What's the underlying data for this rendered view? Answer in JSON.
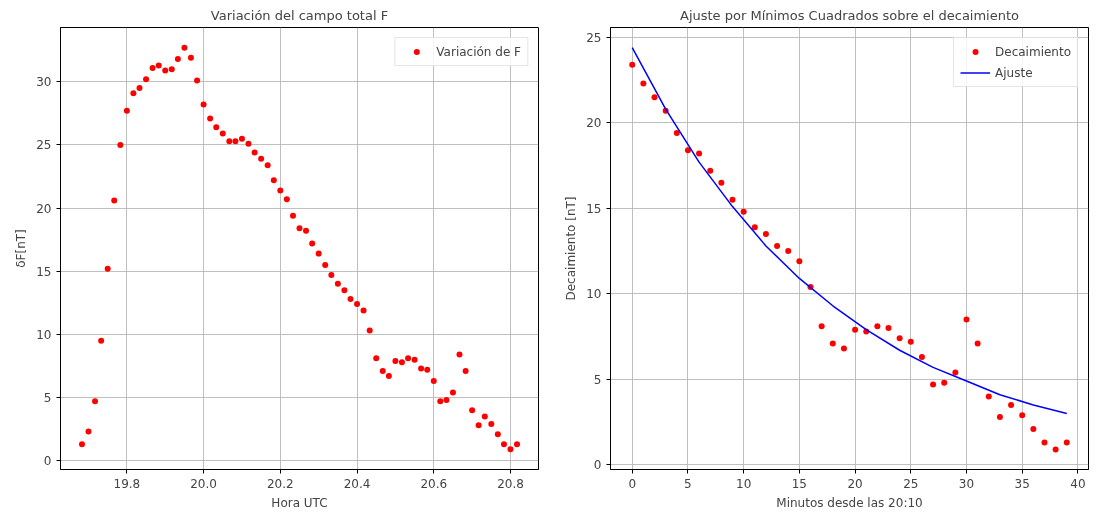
{
  "chart_data": [
    {
      "type": "scatter",
      "title": "Variación del campo total F",
      "xlabel": "Hora UTC",
      "ylabel": "δF[nT]",
      "xlim": [
        19.627,
        20.873
      ],
      "ylim": [
        -0.7,
        34.3
      ],
      "xticks": [
        {
          "value": 19.8,
          "label": "19.8"
        },
        {
          "value": 20.0,
          "label": "20.0"
        },
        {
          "value": 20.2,
          "label": "20.2"
        },
        {
          "value": 20.4,
          "label": "20.4"
        },
        {
          "value": 20.6,
          "label": "20.6"
        },
        {
          "value": 20.8,
          "label": "20.8"
        }
      ],
      "yticks": [
        0,
        5,
        10,
        15,
        20,
        25,
        30
      ],
      "grid": true,
      "legend": "top right",
      "marker": "circle",
      "series": [
        {
          "name": "Variación de F",
          "color": "#ff0000",
          "x": [
            19.683,
            19.7,
            19.717,
            19.733,
            19.75,
            19.767,
            19.783,
            19.8,
            19.817,
            19.833,
            19.85,
            19.867,
            19.883,
            19.9,
            19.917,
            19.933,
            19.95,
            19.967,
            19.983,
            20.0,
            20.017,
            20.033,
            20.05,
            20.067,
            20.083,
            20.1,
            20.117,
            20.133,
            20.15,
            20.167,
            20.183,
            20.2,
            20.217,
            20.233,
            20.25,
            20.267,
            20.283,
            20.3,
            20.317,
            20.333,
            20.35,
            20.367,
            20.383,
            20.4,
            20.417,
            20.433,
            20.45,
            20.467,
            20.483,
            20.5,
            20.517,
            20.533,
            20.55,
            20.567,
            20.583,
            20.6,
            20.617,
            20.633,
            20.65,
            20.667,
            20.683,
            20.7,
            20.717,
            20.733,
            20.75,
            20.767,
            20.783,
            20.8,
            20.817
          ],
          "values": [
            1.3,
            2.3,
            4.7,
            9.5,
            15.2,
            20.6,
            25.0,
            27.7,
            29.1,
            29.5,
            30.2,
            31.1,
            31.3,
            30.9,
            31.0,
            31.8,
            32.7,
            31.9,
            30.1,
            28.2,
            27.1,
            26.4,
            25.9,
            25.3,
            25.3,
            25.5,
            25.1,
            24.4,
            23.9,
            23.4,
            22.2,
            21.4,
            20.7,
            19.4,
            18.4,
            18.2,
            17.2,
            16.4,
            15.5,
            14.7,
            14.0,
            13.5,
            12.8,
            12.4,
            11.9,
            10.3,
            8.1,
            7.1,
            6.7,
            7.9,
            7.8,
            8.1,
            8.0,
            7.3,
            7.2,
            6.3,
            4.7,
            4.8,
            5.4,
            8.4,
            7.1,
            4.0,
            2.8,
            3.5,
            2.9,
            2.1,
            1.3,
            0.9,
            1.3
          ]
        }
      ]
    },
    {
      "type": "scatter",
      "title": "Ajuste por Mínimos Cuadrados sobre el decaimiento",
      "xlabel": "Minutos desde las 20:10",
      "ylabel": "Decaimiento [nT]",
      "xlim": [
        -1.95,
        40.95
      ],
      "ylim": [
        -0.275,
        25.575
      ],
      "xticks": [
        0,
        5,
        10,
        15,
        20,
        25,
        30,
        35,
        40
      ],
      "yticks": [
        0,
        5,
        10,
        15,
        20,
        25
      ],
      "grid": true,
      "legend": "top right",
      "series": [
        {
          "name": "Decaimiento",
          "type": "scatter",
          "marker": "circle",
          "color": "#ff0000",
          "x": [
            0,
            1,
            2,
            3,
            4,
            5,
            6,
            7,
            8,
            9,
            10,
            11,
            12,
            13,
            14,
            15,
            16,
            17,
            18,
            19,
            20,
            21,
            22,
            23,
            24,
            25,
            26,
            27,
            28,
            29,
            30,
            31,
            32,
            33,
            34,
            35,
            36,
            37,
            38,
            39
          ],
          "values": [
            23.4,
            22.3,
            21.5,
            20.7,
            19.4,
            18.4,
            18.2,
            17.2,
            16.5,
            15.5,
            14.8,
            13.9,
            13.5,
            12.8,
            12.5,
            11.9,
            10.4,
            8.1,
            7.1,
            6.8,
            7.9,
            7.8,
            8.1,
            8.0,
            7.4,
            7.2,
            6.3,
            4.7,
            4.8,
            5.4,
            8.5,
            7.1,
            4.0,
            2.8,
            3.5,
            2.9,
            2.1,
            1.3,
            0.9,
            1.3
          ]
        },
        {
          "name": "Ajuste",
          "type": "line",
          "marker": "none",
          "color": "#0000ff",
          "x": [
            0,
            3,
            6,
            9,
            12,
            15,
            18,
            21,
            24,
            27,
            30,
            33,
            36,
            39
          ],
          "values": [
            24.4,
            20.8,
            17.7,
            15.1,
            12.8,
            10.9,
            9.3,
            7.9,
            6.7,
            5.7,
            4.9,
            4.1,
            3.5,
            3.0
          ]
        }
      ]
    }
  ]
}
